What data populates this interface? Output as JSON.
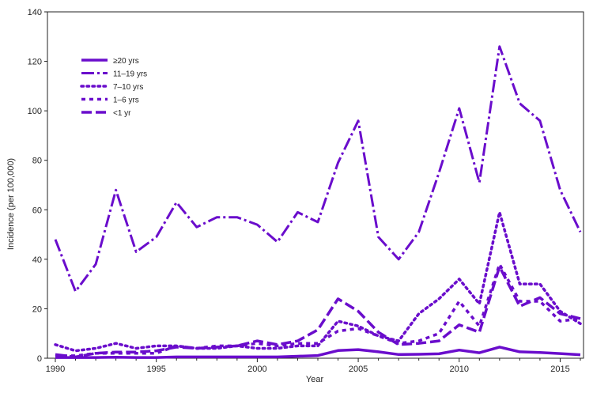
{
  "chart_data": {
    "type": "line",
    "title": "",
    "xlabel": "Year",
    "ylabel": "Incidence (per 100,000)",
    "xlim": [
      1990,
      2016
    ],
    "ylim": [
      0,
      140
    ],
    "xticks": [
      1990,
      1995,
      2000,
      2005,
      2010,
      2015
    ],
    "yticks": [
      0,
      20,
      40,
      60,
      80,
      100,
      120,
      140
    ],
    "grid": false,
    "legend_position": "top-left",
    "color": "#6a0dcc",
    "x": [
      1990,
      1991,
      1992,
      1993,
      1994,
      1995,
      1996,
      1997,
      1998,
      1999,
      2000,
      2001,
      2002,
      2003,
      2004,
      2005,
      2006,
      2007,
      2008,
      2009,
      2010,
      2011,
      2012,
      2013,
      2014,
      2015,
      2016
    ],
    "series": [
      {
        "name": "≥20 yrs",
        "style": "solid",
        "values": [
          0.3,
          0.3,
          0.3,
          0.4,
          0.3,
          0.3,
          0.5,
          0.5,
          0.5,
          0.5,
          0.5,
          0.5,
          0.8,
          1.1,
          3.1,
          3.5,
          2.6,
          1.5,
          1.6,
          1.8,
          3.3,
          2.2,
          4.5,
          2.6,
          2.3,
          1.9,
          1.4
        ]
      },
      {
        "name": "11–19 yrs",
        "style": "dashdot",
        "values": [
          48,
          27,
          38,
          68,
          43,
          49,
          63,
          53,
          57,
          57,
          54,
          47,
          59,
          55,
          79,
          96,
          49,
          40,
          51,
          75,
          101,
          71,
          126,
          103,
          96,
          68,
          51
        ]
      },
      {
        "name": "7–10 yrs",
        "style": "dotted",
        "values": [
          5.5,
          3,
          4,
          6,
          4,
          5,
          5,
          4,
          4,
          5,
          4,
          4,
          5,
          5,
          15,
          13,
          9,
          7,
          18,
          24,
          32,
          22,
          59,
          30,
          30,
          19,
          14
        ]
      },
      {
        "name": "1–6 yrs",
        "style": "dashed-short",
        "values": [
          1,
          1,
          2,
          2,
          2,
          2,
          5,
          4,
          5,
          5,
          6,
          5,
          6,
          6,
          11,
          12,
          9,
          6,
          7,
          10,
          23,
          13,
          38,
          23,
          23,
          15,
          16
        ]
      },
      {
        "name": "<1 yr",
        "style": "dashed-long",
        "values": [
          1.5,
          0.5,
          2,
          2.5,
          2.5,
          3,
          4.5,
          4,
          4.5,
          5,
          7,
          5.5,
          7,
          11.5,
          24,
          19,
          10.5,
          5.5,
          6,
          7,
          13.5,
          10.5,
          37,
          21,
          24.5,
          18,
          16
        ]
      }
    ]
  }
}
